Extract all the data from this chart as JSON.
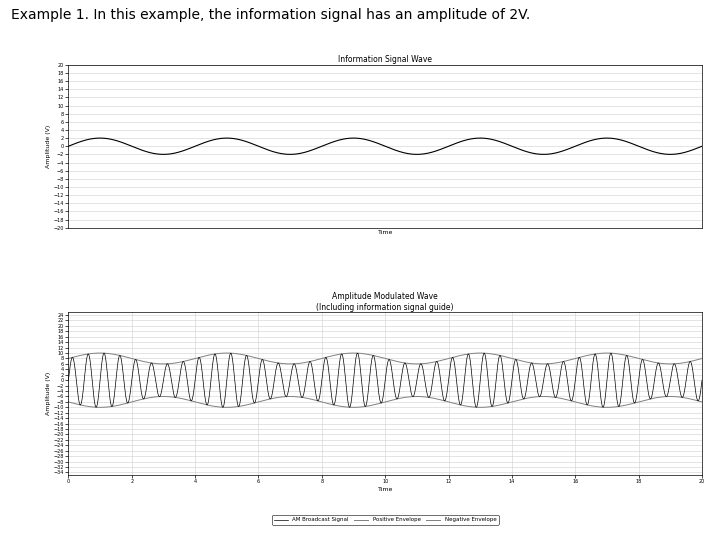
{
  "title_text": "Example 1. In this example, the information signal has an amplitude of 2V.",
  "title_fontsize": 10,
  "title_font": "Courier New",
  "plot1_title": "Information Signal Wave",
  "plot1_ylabel": "Amplitude (V)",
  "plot1_xlabel": "Time",
  "plot1_ylim": [
    -20,
    20
  ],
  "plot1_xlim": [
    0,
    20
  ],
  "plot1_amplitude": 2,
  "plot1_freq": 0.25,
  "plot2_title": "Amplitude Modulated Wave",
  "plot2_subtitle": "(Including information signal guide)",
  "plot2_ylabel": "Amplitude (V)",
  "plot2_xlabel": "Time",
  "plot2_ylim": [
    -35,
    25
  ],
  "plot2_xlim": [
    0,
    20
  ],
  "info_amplitude": 2,
  "carrier_amplitude": 8,
  "carrier_freq": 2.0,
  "info_freq": 0.25,
  "legend_labels": [
    "AM Broadcast Signal",
    "Positive Envelope",
    "Negative Envelope"
  ],
  "line_color": "#000000",
  "envelope_color": "#808080",
  "bg_color": "#ffffff",
  "grid_color": "#d0d0d0"
}
